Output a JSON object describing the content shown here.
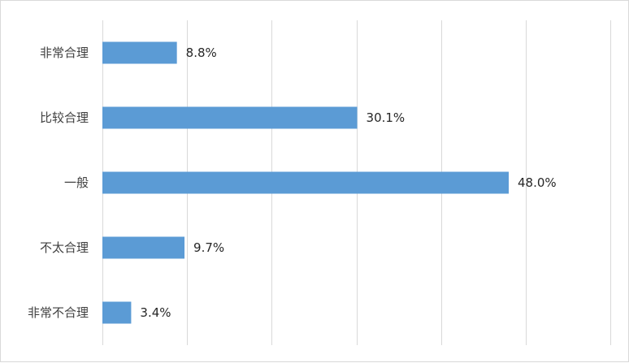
{
  "chart_data": {
    "type": "bar",
    "orientation": "horizontal",
    "categories": [
      "非常合理",
      "比较合理",
      "一般",
      "不太合理",
      "非常不合理"
    ],
    "values": [
      8.8,
      30.1,
      48.0,
      9.7,
      3.4
    ],
    "data_labels": [
      "8.8%",
      "30.1%",
      "48.0%",
      "9.7%",
      "3.4%"
    ],
    "unit": "%",
    "xlim": [
      0,
      60
    ],
    "grid": true,
    "legend": "none",
    "bar_color": "#5b9bd5",
    "title": "",
    "xlabel": "",
    "ylabel": ""
  }
}
